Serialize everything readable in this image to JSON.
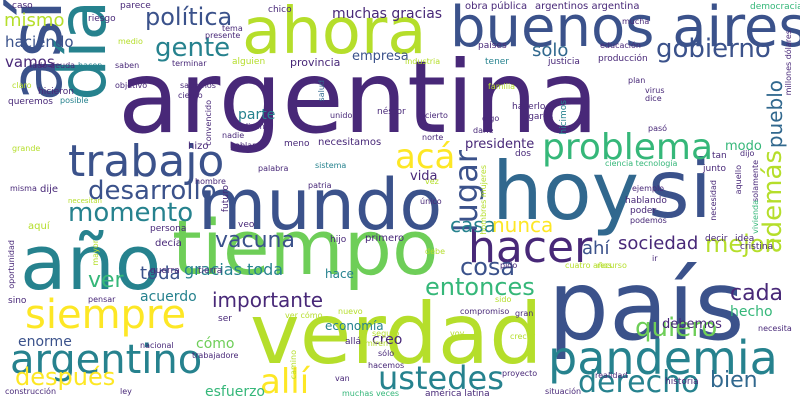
{
  "palette": {
    "background": "#ffffff",
    "dark_purple": "#440154",
    "indigo": "#482878",
    "blue": "#3b528b",
    "steel_blue": "#31688e",
    "teal": "#26828e",
    "sea_green": "#1f9e89",
    "green": "#35b779",
    "light_green": "#6ece58",
    "lime": "#b5de2b",
    "yellow": "#fde725"
  },
  "words": [
    "argentina",
    "país",
    "verdad",
    "hoy",
    "si",
    "año",
    "tiempo",
    "mundo",
    "ahora",
    "buenos aires",
    "así",
    "día",
    "pandemia",
    "trabajo",
    "hacer",
    "siempre",
    "argentino",
    "problema",
    "ustedes",
    "derecho",
    "después",
    "allí",
    "política",
    "gente",
    "gobierno",
    "momento",
    "desarrollo",
    "acá",
    "mejor",
    "además",
    "entonces",
    "cosa",
    "lugar",
    "vacuna",
    "cada",
    "importante",
    "quiero",
    "sociedad",
    "pueblo",
    "bien",
    "ver",
    "casa",
    "nunca",
    "ahí",
    "toda",
    "gracias toda",
    "mismo",
    "haciendo",
    "vamos",
    "solo",
    "muchas gracias",
    "empresa",
    "provincia",
    "presidente",
    "hecho",
    "debemos",
    "economía",
    "acuerdo",
    "enorme",
    "cómo",
    "vida",
    "creo",
    "esfuerzo",
    "parte",
    "hace",
    "modo",
    "obra pública",
    "argentinos argentina",
    "democracia",
    "caso",
    "riesgo",
    "parece",
    "chico",
    "claro",
    "medio",
    "presente",
    "tema",
    "mucha",
    "países",
    "educación",
    "producción",
    "justicia",
    "tener",
    "industria",
    "hicieron",
    "lado",
    "deuda",
    "hacen",
    "saben",
    "terminar",
    "alguien",
    "plan",
    "dice",
    "virus",
    "objetivo",
    "queremos",
    "posible",
    "sabemos",
    "ciento",
    "salud",
    "familia",
    "digo",
    "hacerlo",
    "lugares",
    "hicimos",
    "millones dólares",
    "néstor",
    "unido",
    "cierto",
    "convencido",
    "hablar",
    "hizo",
    "meno",
    "nadie",
    "dicen",
    "necesitamos",
    "norte",
    "darle",
    "pasó",
    "grande",
    "hombre",
    "palabra",
    "sistema",
    "tan",
    "junto",
    "dos",
    "ciencia tecnología",
    "aquello",
    "solamente",
    "dijo",
    "misma",
    "dije",
    "necesitan",
    "patria",
    "futuro",
    "único",
    "vez",
    "hombres mujeres",
    "ejemplo",
    "hablando",
    "poder",
    "podemos",
    "decir",
    "idea",
    "cristina",
    "necesidad",
    "vivienda",
    "aquí",
    "persona",
    "veo",
    "decía",
    "hijo",
    "primero",
    "debe",
    "guerra",
    "tierra",
    "recurso",
    "cuatro años",
    "ir",
    "pido",
    "oportunidad",
    "mayor",
    "sino",
    "pensar",
    "ser",
    "sido",
    "nuevo",
    "compromiso",
    "gran",
    "crecer",
    "ver cómo",
    "seguro",
    "voy",
    "miren",
    "sólo",
    "allá",
    "nacional",
    "trabajadore",
    "hacemos",
    "camino",
    "proyecto",
    "situación",
    "realidad",
    "historia",
    "necesita",
    "construcción",
    "ley",
    "van",
    "muchas veces",
    "américa latina"
  ]
}
